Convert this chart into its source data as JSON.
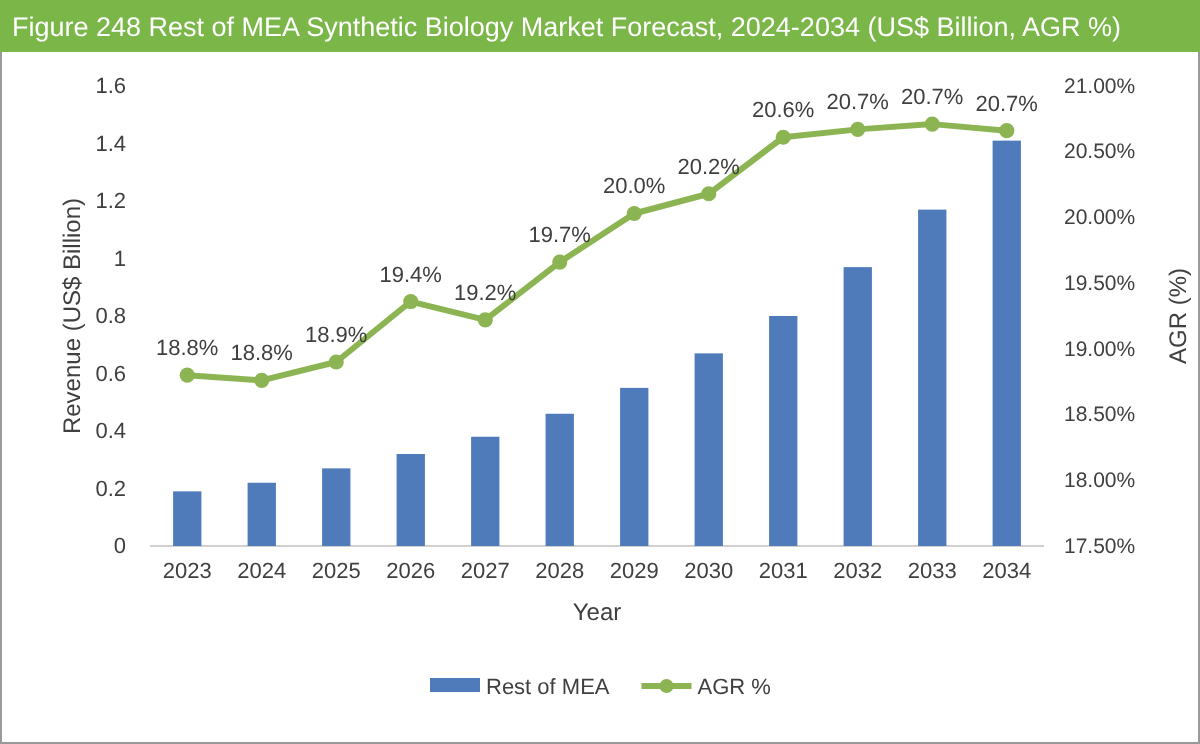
{
  "chart_data": {
    "type": "bar",
    "title": "Figure 248 Rest of MEA Synthetic Biology Market Forecast, 2024-2034 (US$ Billion, AGR %)",
    "xlabel": "Year",
    "ylabel": "Revenue (US$ Billion)",
    "y2label": "AGR (%)",
    "categories": [
      "2023",
      "2024",
      "2025",
      "2026",
      "2027",
      "2028",
      "2029",
      "2030",
      "2031",
      "2032",
      "2033",
      "2034"
    ],
    "series": [
      {
        "name": "Rest of MEA",
        "color": "#4f7bbb",
        "values": [
          0.19,
          0.22,
          0.27,
          0.32,
          0.38,
          0.46,
          0.55,
          0.67,
          0.8,
          0.97,
          1.17,
          1.41
        ]
      },
      {
        "name": "AGR %",
        "type": "line",
        "axis": "y2",
        "color": "#8db452",
        "marker": "circle",
        "values": [
          18.8,
          18.76,
          18.9,
          19.36,
          19.22,
          19.66,
          20.03,
          20.18,
          20.61,
          20.67,
          20.71,
          20.66
        ],
        "value_labels": [
          "18.8%",
          "18.8%",
          "18.9%",
          "19.4%",
          "19.2%",
          "19.7%",
          "20.0%",
          "20.2%",
          "20.6%",
          "20.7%",
          "20.7%",
          "20.7%"
        ]
      }
    ],
    "ylim": [
      0,
      1.6
    ],
    "yticks": [
      0,
      0.2,
      0.4,
      0.6,
      0.8,
      1,
      1.2,
      1.4,
      1.6
    ],
    "y2lim": [
      17.5,
      21
    ],
    "y2ticks": [
      {
        "value": 17.5,
        "label": "17.50%"
      },
      {
        "value": 18,
        "label": "18.00%"
      },
      {
        "value": 18.5,
        "label": "18.50%"
      },
      {
        "value": 19,
        "label": "19.00%"
      },
      {
        "value": 19.5,
        "label": "19.50%"
      },
      {
        "value": 20,
        "label": "20.00%"
      },
      {
        "value": 20.5,
        "label": "20.50%"
      },
      {
        "value": 21,
        "label": "21.00%"
      }
    ],
    "grid": false,
    "legend": "bottom"
  }
}
